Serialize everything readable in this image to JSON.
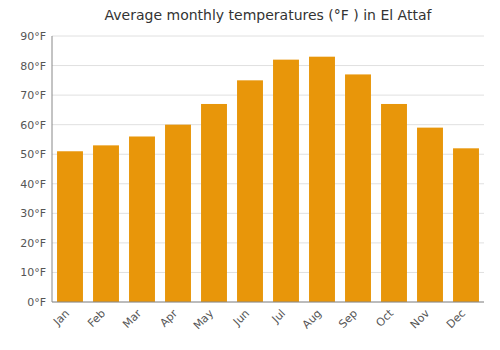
{
  "chart_data": {
    "type": "bar",
    "title": "Average monthly temperatures (°F ) in El Attaf",
    "categories": [
      "Jan",
      "Feb",
      "Mar",
      "Apr",
      "May",
      "Jun",
      "Jul",
      "Aug",
      "Sep",
      "Oct",
      "Nov",
      "Dec"
    ],
    "values": [
      51,
      53,
      56,
      60,
      67,
      75,
      82,
      83,
      77,
      67,
      59,
      52
    ],
    "color": "#E8960A",
    "ylim": [
      0,
      90
    ],
    "yticks": [
      {
        "value": 0,
        "label": "0°F"
      },
      {
        "value": 10,
        "label": "10°F"
      },
      {
        "value": 20,
        "label": "20°F"
      },
      {
        "value": 30,
        "label": "30°F"
      },
      {
        "value": 40,
        "label": "40°F"
      },
      {
        "value": 50,
        "label": "50°F"
      },
      {
        "value": 60,
        "label": "60°F"
      },
      {
        "value": 70,
        "label": "70°F"
      },
      {
        "value": 80,
        "label": "80°F"
      },
      {
        "value": 90,
        "label": "90°F"
      }
    ],
    "grid": true
  }
}
